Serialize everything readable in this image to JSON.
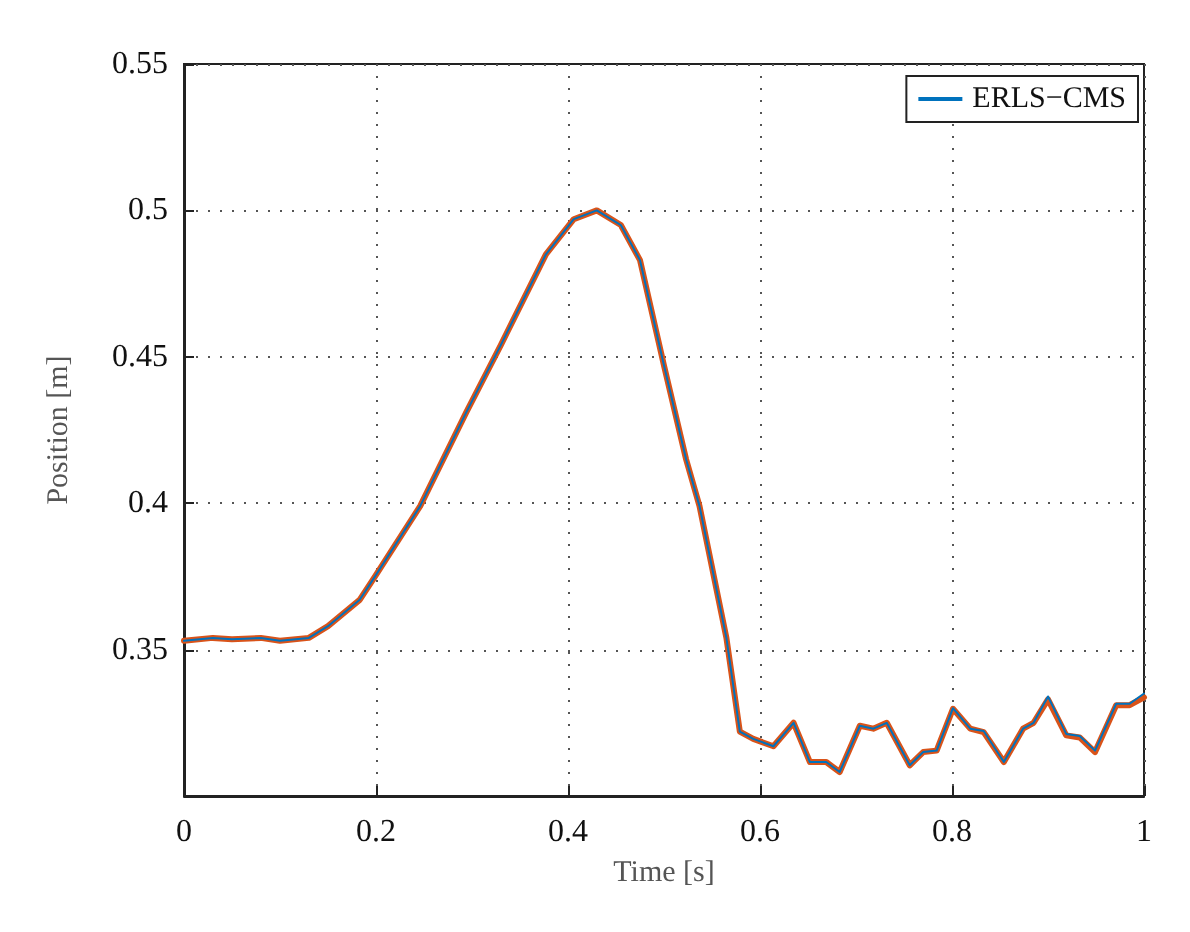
{
  "chart_data": {
    "type": "line",
    "xlabel": "Time [s]",
    "ylabel": "Position [m]",
    "xlim": [
      0,
      1
    ],
    "xticks": [
      0,
      0.2,
      0.4,
      0.6,
      0.8,
      1
    ],
    "ylim": [
      0.3,
      0.55
    ],
    "yticks": [
      0.35,
      0.4,
      0.45,
      0.5,
      0.55
    ],
    "grid": true,
    "legend": "top right",
    "line_style": "solid",
    "marker": "none",
    "x": [
      0,
      0.03,
      0.05,
      0.08,
      0.1,
      0.13,
      0.15,
      0.183,
      0.197,
      0.246,
      0.294,
      0.33,
      0.377,
      0.406,
      0.43,
      0.455,
      0.475,
      0.5,
      0.523,
      0.537,
      0.565,
      0.579,
      0.593,
      0.614,
      0.635,
      0.652,
      0.669,
      0.683,
      0.704,
      0.718,
      0.732,
      0.756,
      0.77,
      0.784,
      0.801,
      0.819,
      0.833,
      0.854,
      0.874,
      0.885,
      0.9,
      0.919,
      0.933,
      0.949,
      0.971,
      0.985,
      1
    ],
    "series": [
      {
        "name": "ERLS−CMS",
        "color": "#0072bd",
        "values": [
          0.353,
          0.354,
          0.3535,
          0.354,
          0.353,
          0.354,
          0.358,
          0.367,
          0.374,
          0.399,
          0.431,
          0.454,
          0.485,
          0.497,
          0.5,
          0.495,
          0.483,
          0.447,
          0.415,
          0.399,
          0.354,
          0.322,
          0.3195,
          0.317,
          0.325,
          0.3116,
          0.3116,
          0.3082,
          0.324,
          0.323,
          0.325,
          0.3105,
          0.315,
          0.3155,
          0.33,
          0.323,
          0.3222,
          0.3116,
          0.323,
          0.325,
          0.334,
          0.3212,
          0.3205,
          0.3155,
          0.3315,
          0.3315,
          0.335
        ]
      },
      {
        "color": "#d95319",
        "values": [
          0.353,
          0.354,
          0.3535,
          0.354,
          0.353,
          0.354,
          0.358,
          0.367,
          0.374,
          0.399,
          0.431,
          0.454,
          0.485,
          0.497,
          0.5,
          0.495,
          0.483,
          0.447,
          0.415,
          0.399,
          0.354,
          0.322,
          0.3195,
          0.317,
          0.325,
          0.3116,
          0.3116,
          0.3082,
          0.324,
          0.323,
          0.325,
          0.3105,
          0.315,
          0.3155,
          0.3298,
          0.323,
          0.3218,
          0.3116,
          0.323,
          0.325,
          0.333,
          0.3207,
          0.32,
          0.315,
          0.331,
          0.331,
          0.3337
        ]
      }
    ]
  }
}
